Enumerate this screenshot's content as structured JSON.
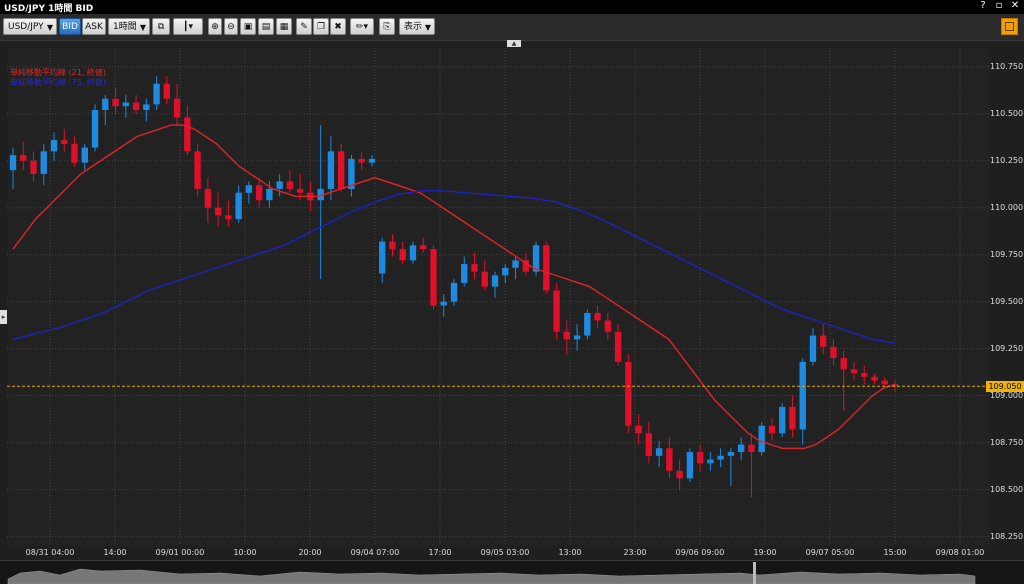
{
  "window": {
    "title": "USD/JPY 1時間 BID",
    "controls": [
      "?",
      "▫",
      "✕"
    ]
  },
  "toolbar": {
    "symbol": "USD/JPY",
    "bid_label": "BID",
    "ask_label": "ASK",
    "period": "1時間",
    "display_label": "表示"
  },
  "legend": {
    "ma_short": "単純移動平均線 (21, 終値)",
    "ma_long": "単純移動平均線 (75, 終値)"
  },
  "colors": {
    "up": "#1e8be0",
    "down": "#e0102a",
    "ma_short": "#e0242a",
    "ma_long": "#1c22c4",
    "current_line": "#e8a800",
    "current_label_bg": "#f0b400"
  },
  "price_axis": {
    "ticks": [
      "110.750",
      "110.500",
      "110.250",
      "110.000",
      "109.750",
      "109.500",
      "109.250",
      "109.000",
      "108.750",
      "108.500",
      "108.250"
    ],
    "current": "109.050"
  },
  "time_axis": {
    "labels": [
      "08/31 04:00",
      "14:00",
      "09/01 00:00",
      "10:00",
      "20:00",
      "09/04 07:00",
      "17:00",
      "09/05 03:00",
      "13:00",
      "23:00",
      "09/06 09:00",
      "19:00",
      "09/07 05:00",
      "15:00",
      "09/08 01:00"
    ]
  },
  "chart_data": {
    "type": "candlestick",
    "symbol": "USD/JPY",
    "timeframe": "1時間",
    "ylim": [
      108.2,
      110.85
    ],
    "current_price": 109.05,
    "candles": [
      {
        "o": 110.2,
        "h": 110.32,
        "l": 110.1,
        "c": 110.28
      },
      {
        "o": 110.28,
        "h": 110.35,
        "l": 110.2,
        "c": 110.25
      },
      {
        "o": 110.25,
        "h": 110.3,
        "l": 110.14,
        "c": 110.18
      },
      {
        "o": 110.18,
        "h": 110.34,
        "l": 110.12,
        "c": 110.3
      },
      {
        "o": 110.3,
        "h": 110.4,
        "l": 110.25,
        "c": 110.36
      },
      {
        "o": 110.36,
        "h": 110.42,
        "l": 110.3,
        "c": 110.34
      },
      {
        "o": 110.34,
        "h": 110.38,
        "l": 110.22,
        "c": 110.24
      },
      {
        "o": 110.24,
        "h": 110.34,
        "l": 110.2,
        "c": 110.32
      },
      {
        "o": 110.32,
        "h": 110.55,
        "l": 110.3,
        "c": 110.52
      },
      {
        "o": 110.52,
        "h": 110.6,
        "l": 110.44,
        "c": 110.58
      },
      {
        "o": 110.58,
        "h": 110.64,
        "l": 110.5,
        "c": 110.54
      },
      {
        "o": 110.54,
        "h": 110.6,
        "l": 110.48,
        "c": 110.56
      },
      {
        "o": 110.56,
        "h": 110.6,
        "l": 110.5,
        "c": 110.52
      },
      {
        "o": 110.52,
        "h": 110.58,
        "l": 110.46,
        "c": 110.55
      },
      {
        "o": 110.55,
        "h": 110.7,
        "l": 110.52,
        "c": 110.66
      },
      {
        "o": 110.66,
        "h": 110.7,
        "l": 110.55,
        "c": 110.58
      },
      {
        "o": 110.58,
        "h": 110.66,
        "l": 110.44,
        "c": 110.48
      },
      {
        "o": 110.48,
        "h": 110.54,
        "l": 110.28,
        "c": 110.3
      },
      {
        "o": 110.3,
        "h": 110.34,
        "l": 110.06,
        "c": 110.1
      },
      {
        "o": 110.1,
        "h": 110.16,
        "l": 109.92,
        "c": 110.0
      },
      {
        "o": 110.0,
        "h": 110.08,
        "l": 109.9,
        "c": 109.96
      },
      {
        "o": 109.96,
        "h": 110.04,
        "l": 109.9,
        "c": 109.94
      },
      {
        "o": 109.94,
        "h": 110.12,
        "l": 109.92,
        "c": 110.08
      },
      {
        "o": 110.08,
        "h": 110.14,
        "l": 110.02,
        "c": 110.12
      },
      {
        "o": 110.12,
        "h": 110.16,
        "l": 110.0,
        "c": 110.04
      },
      {
        "o": 110.04,
        "h": 110.14,
        "l": 110.0,
        "c": 110.1
      },
      {
        "o": 110.1,
        "h": 110.18,
        "l": 110.06,
        "c": 110.14
      },
      {
        "o": 110.14,
        "h": 110.2,
        "l": 110.08,
        "c": 110.1
      },
      {
        "o": 110.1,
        "h": 110.18,
        "l": 110.04,
        "c": 110.08
      },
      {
        "o": 110.08,
        "h": 110.14,
        "l": 109.98,
        "c": 110.04
      },
      {
        "o": 110.04,
        "h": 110.44,
        "l": 109.62,
        "c": 110.1
      },
      {
        "o": 110.1,
        "h": 110.38,
        "l": 110.04,
        "c": 110.3
      },
      {
        "o": 110.3,
        "h": 110.34,
        "l": 110.08,
        "c": 110.1
      },
      {
        "o": 110.1,
        "h": 110.28,
        "l": 110.06,
        "c": 110.26
      },
      {
        "o": 110.26,
        "h": 110.3,
        "l": 110.2,
        "c": 110.24
      },
      {
        "o": 110.24,
        "h": 110.28,
        "l": 110.22,
        "c": 110.26
      },
      {
        "o": 109.65,
        "h": 109.84,
        "l": 109.6,
        "c": 109.82
      },
      {
        "o": 109.82,
        "h": 109.86,
        "l": 109.74,
        "c": 109.78
      },
      {
        "o": 109.78,
        "h": 109.82,
        "l": 109.7,
        "c": 109.72
      },
      {
        "o": 109.72,
        "h": 109.82,
        "l": 109.7,
        "c": 109.8
      },
      {
        "o": 109.8,
        "h": 109.84,
        "l": 109.76,
        "c": 109.78
      },
      {
        "o": 109.78,
        "h": 109.8,
        "l": 109.46,
        "c": 109.48
      },
      {
        "o": 109.48,
        "h": 109.54,
        "l": 109.42,
        "c": 109.5
      },
      {
        "o": 109.5,
        "h": 109.62,
        "l": 109.48,
        "c": 109.6
      },
      {
        "o": 109.6,
        "h": 109.74,
        "l": 109.58,
        "c": 109.7
      },
      {
        "o": 109.7,
        "h": 109.76,
        "l": 109.62,
        "c": 109.66
      },
      {
        "o": 109.66,
        "h": 109.72,
        "l": 109.56,
        "c": 109.58
      },
      {
        "o": 109.58,
        "h": 109.66,
        "l": 109.52,
        "c": 109.64
      },
      {
        "o": 109.64,
        "h": 109.7,
        "l": 109.6,
        "c": 109.68
      },
      {
        "o": 109.68,
        "h": 109.74,
        "l": 109.62,
        "c": 109.72
      },
      {
        "o": 109.72,
        "h": 109.76,
        "l": 109.64,
        "c": 109.66
      },
      {
        "o": 109.66,
        "h": 109.82,
        "l": 109.64,
        "c": 109.8
      },
      {
        "o": 109.8,
        "h": 109.82,
        "l": 109.54,
        "c": 109.56
      },
      {
        "o": 109.56,
        "h": 109.6,
        "l": 109.3,
        "c": 109.34
      },
      {
        "o": 109.34,
        "h": 109.4,
        "l": 109.22,
        "c": 109.3
      },
      {
        "o": 109.3,
        "h": 109.38,
        "l": 109.24,
        "c": 109.32
      },
      {
        "o": 109.32,
        "h": 109.46,
        "l": 109.3,
        "c": 109.44
      },
      {
        "o": 109.44,
        "h": 109.48,
        "l": 109.36,
        "c": 109.4
      },
      {
        "o": 109.4,
        "h": 109.44,
        "l": 109.3,
        "c": 109.34
      },
      {
        "o": 109.34,
        "h": 109.38,
        "l": 109.16,
        "c": 109.18
      },
      {
        "o": 109.18,
        "h": 109.22,
        "l": 108.8,
        "c": 108.84
      },
      {
        "o": 108.84,
        "h": 108.9,
        "l": 108.74,
        "c": 108.8
      },
      {
        "o": 108.8,
        "h": 108.86,
        "l": 108.64,
        "c": 108.68
      },
      {
        "o": 108.68,
        "h": 108.76,
        "l": 108.62,
        "c": 108.72
      },
      {
        "o": 108.72,
        "h": 108.78,
        "l": 108.56,
        "c": 108.6
      },
      {
        "o": 108.6,
        "h": 108.66,
        "l": 108.5,
        "c": 108.56
      },
      {
        "o": 108.56,
        "h": 108.72,
        "l": 108.54,
        "c": 108.7
      },
      {
        "o": 108.7,
        "h": 108.74,
        "l": 108.6,
        "c": 108.64
      },
      {
        "o": 108.64,
        "h": 108.7,
        "l": 108.6,
        "c": 108.66
      },
      {
        "o": 108.66,
        "h": 108.72,
        "l": 108.62,
        "c": 108.68
      },
      {
        "o": 108.68,
        "h": 108.72,
        "l": 108.52,
        "c": 108.7
      },
      {
        "o": 108.7,
        "h": 108.78,
        "l": 108.66,
        "c": 108.74
      },
      {
        "o": 108.74,
        "h": 108.8,
        "l": 108.46,
        "c": 108.7
      },
      {
        "o": 108.7,
        "h": 108.86,
        "l": 108.68,
        "c": 108.84
      },
      {
        "o": 108.84,
        "h": 108.88,
        "l": 108.76,
        "c": 108.8
      },
      {
        "o": 108.8,
        "h": 108.96,
        "l": 108.78,
        "c": 108.94
      },
      {
        "o": 108.94,
        "h": 109.0,
        "l": 108.78,
        "c": 108.82
      },
      {
        "o": 108.82,
        "h": 109.2,
        "l": 108.74,
        "c": 109.18
      },
      {
        "o": 109.18,
        "h": 109.36,
        "l": 109.16,
        "c": 109.32
      },
      {
        "o": 109.32,
        "h": 109.38,
        "l": 109.22,
        "c": 109.26
      },
      {
        "o": 109.26,
        "h": 109.3,
        "l": 109.16,
        "c": 109.2
      },
      {
        "o": 109.2,
        "h": 109.24,
        "l": 108.92,
        "c": 109.14
      },
      {
        "o": 109.14,
        "h": 109.18,
        "l": 109.08,
        "c": 109.12
      },
      {
        "o": 109.12,
        "h": 109.16,
        "l": 109.06,
        "c": 109.1
      },
      {
        "o": 109.1,
        "h": 109.12,
        "l": 109.06,
        "c": 109.08
      },
      {
        "o": 109.08,
        "h": 109.1,
        "l": 109.04,
        "c": 109.06
      },
      {
        "o": 109.06,
        "h": 109.08,
        "l": 109.02,
        "c": 109.05
      }
    ],
    "ma21": [
      109.78,
      109.86,
      109.94,
      110.0,
      110.06,
      110.12,
      110.18,
      110.22,
      110.26,
      110.3,
      110.34,
      110.38,
      110.4,
      110.42,
      110.44,
      110.44,
      110.42,
      110.38,
      110.34,
      110.28,
      110.22,
      110.18,
      110.14,
      110.1,
      110.08,
      110.06,
      110.06,
      110.06,
      110.08,
      110.1,
      110.12,
      110.14,
      110.16,
      110.14,
      110.12,
      110.1,
      110.08,
      110.04,
      110.0,
      109.96,
      109.92,
      109.88,
      109.84,
      109.8,
      109.76,
      109.72,
      109.68,
      109.66,
      109.64,
      109.62,
      109.6,
      109.58,
      109.54,
      109.5,
      109.46,
      109.42,
      109.38,
      109.34,
      109.3,
      109.22,
      109.14,
      109.06,
      108.98,
      108.92,
      108.86,
      108.8,
      108.76,
      108.74,
      108.72,
      108.72,
      108.72,
      108.74,
      108.78,
      108.82,
      108.88,
      108.94,
      109.0,
      109.04,
      109.06
    ],
    "ma75": [
      109.3,
      109.33,
      109.36,
      109.4,
      109.44,
      109.5,
      109.56,
      109.6,
      109.64,
      109.68,
      109.72,
      109.76,
      109.8,
      109.86,
      109.92,
      109.98,
      110.03,
      110.07,
      110.09,
      110.09,
      110.08,
      110.07,
      110.06,
      110.05,
      110.03,
      109.99,
      109.94,
      109.88,
      109.82,
      109.76,
      109.7,
      109.64,
      109.58,
      109.52,
      109.46,
      109.42,
      109.38,
      109.34,
      109.3,
      109.28
    ]
  }
}
